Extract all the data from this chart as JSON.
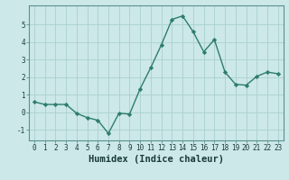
{
  "x": [
    0,
    1,
    2,
    3,
    4,
    5,
    6,
    7,
    8,
    9,
    10,
    11,
    12,
    13,
    14,
    15,
    16,
    17,
    18,
    19,
    20,
    21,
    22,
    23
  ],
  "y": [
    0.6,
    0.45,
    0.45,
    0.45,
    -0.05,
    -0.3,
    -0.45,
    -1.2,
    -0.05,
    -0.1,
    1.35,
    2.55,
    3.85,
    5.3,
    5.5,
    4.6,
    3.45,
    4.15,
    2.3,
    1.6,
    1.55,
    2.05,
    2.3,
    2.2
  ],
  "xlabel": "Humidex (Indice chaleur)",
  "xlim": [
    -0.5,
    23.5
  ],
  "ylim": [
    -1.6,
    6.1
  ],
  "yticks": [
    -1,
    0,
    1,
    2,
    3,
    4,
    5
  ],
  "xticks": [
    0,
    1,
    2,
    3,
    4,
    5,
    6,
    7,
    8,
    9,
    10,
    11,
    12,
    13,
    14,
    15,
    16,
    17,
    18,
    19,
    20,
    21,
    22,
    23
  ],
  "line_color": "#2e7d6e",
  "marker": "D",
  "marker_size": 2.2,
  "bg_color": "#cce8e8",
  "grid_color": "#aad0d0",
  "line_width": 1.0,
  "tick_fontsize": 5.5,
  "xlabel_fontsize": 7.5
}
